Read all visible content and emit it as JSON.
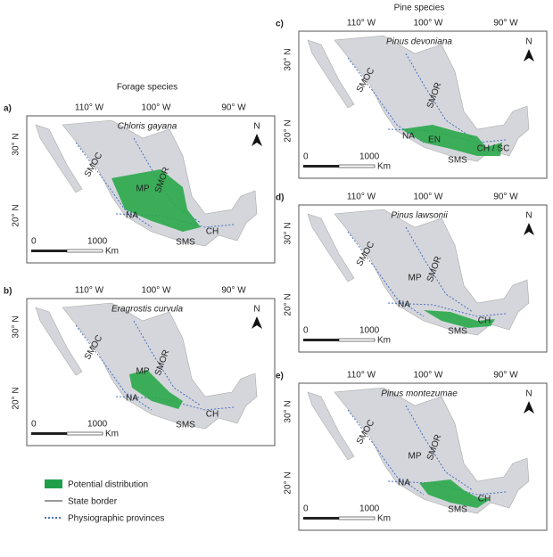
{
  "groups": [
    "Forage species",
    "Pine species"
  ],
  "panels": [
    {
      "label": "a)",
      "species": "Chloris gayana",
      "lon": [
        "110° W",
        "100° W",
        "90° W"
      ],
      "lat": [
        "30° N",
        "20° N"
      ],
      "regions": [
        "SMOC",
        "SMOR",
        "MP",
        "NA",
        "SMS",
        "CH"
      ],
      "scale": [
        "0",
        "1000",
        "Km"
      ],
      "north": "N"
    },
    {
      "label": "b)",
      "species": "Eragrostis curvula",
      "lon": [
        "110° W",
        "100° W",
        "90° W"
      ],
      "lat": [
        "30° N",
        "20° N"
      ],
      "regions": [
        "SMOC",
        "SMOR",
        "MP",
        "NA",
        "SMS",
        "CH"
      ],
      "scale": [
        "0",
        "1000",
        "Km"
      ],
      "north": "N"
    },
    {
      "label": "c)",
      "species": "Pinus devoniana",
      "lon": [
        "110° W",
        "100° W",
        "90° W"
      ],
      "lat": [
        "30° N",
        "20° N"
      ],
      "regions": [
        "SMOC",
        "SMOR",
        "NA",
        "EN",
        "SMS",
        "CH / SC"
      ],
      "scale": [
        "0",
        "1000",
        "Km"
      ],
      "north": "N"
    },
    {
      "label": "d)",
      "species": "Pinus lawsonii",
      "lon": [
        "110° W",
        "100° W",
        "90° W"
      ],
      "lat": [
        "30° N",
        "20° N"
      ],
      "regions": [
        "SMOC",
        "SMOR",
        "MP",
        "NA",
        "SMS",
        "CH"
      ],
      "scale": [
        "0",
        "1000",
        "Km"
      ],
      "north": "N"
    },
    {
      "label": "e)",
      "species": "Pinus montezumae",
      "lon": [
        "110° W",
        "100° W",
        "90° W"
      ],
      "lat": [
        "30° N",
        "20° N"
      ],
      "regions": [
        "SMOC",
        "SMOR",
        "MP",
        "NA",
        "SMS",
        "CH"
      ],
      "scale": [
        "0",
        "1000",
        "Km"
      ],
      "north": "N"
    }
  ],
  "legend": [
    "Potential distribution",
    "State border",
    "Physiographic provinces"
  ]
}
